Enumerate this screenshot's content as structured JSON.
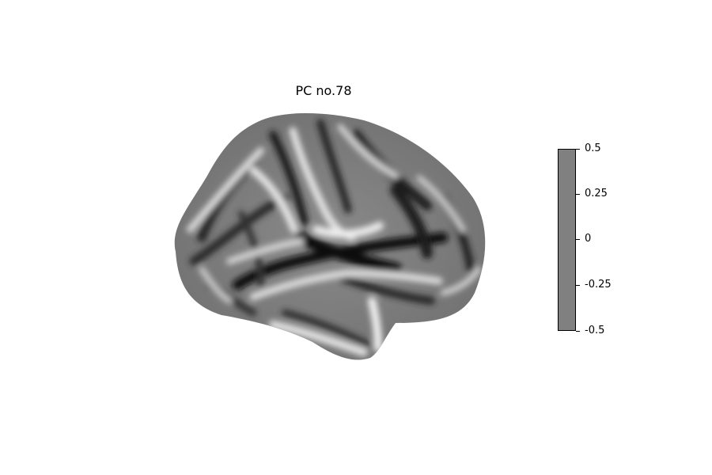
{
  "title": "PC no.78",
  "colorbar": {
    "ticks": [
      "0.5",
      "0.25",
      "0",
      "-0.25",
      "-0.5"
    ],
    "range": [
      -0.5,
      0.5
    ],
    "fill_color": "#808080"
  },
  "surface": {
    "colormap": "grayscale",
    "style": "inflated cortical surface (lateral view)"
  }
}
